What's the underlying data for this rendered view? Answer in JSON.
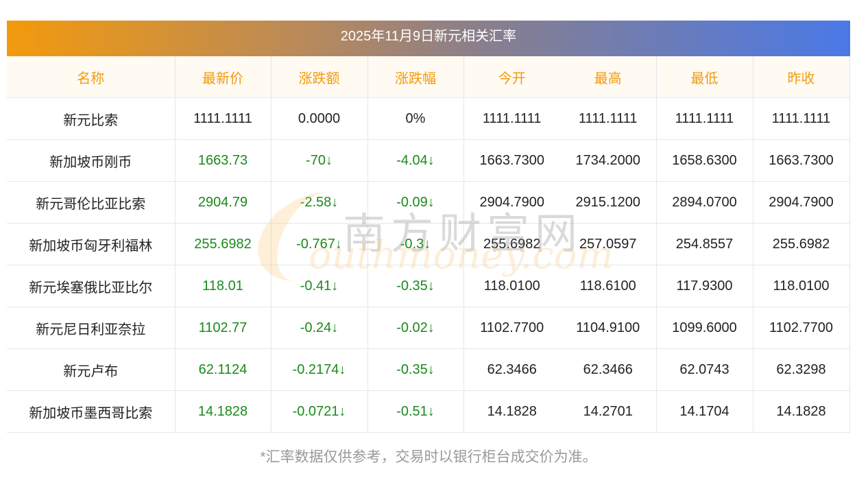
{
  "title": "2025年11月9日新元相关汇率",
  "columns": [
    "名称",
    "最新价",
    "涨跌额",
    "涨跌幅",
    "今开",
    "最高",
    "最低",
    "昨收"
  ],
  "rows": [
    [
      "新元比索",
      "1111.1111",
      "0.0000",
      "0%",
      "1111.1111",
      "1111.1111",
      "1111.1111",
      "1111.1111"
    ],
    [
      "新加坡币刚币",
      "1663.73",
      "-70↓",
      "-4.04↓",
      "1663.7300",
      "1734.2000",
      "1658.6300",
      "1663.7300"
    ],
    [
      "新元哥伦比亚比索",
      "2904.79",
      "-2.58↓",
      "-0.09↓",
      "2904.7900",
      "2915.1200",
      "2894.0700",
      "2904.7900"
    ],
    [
      "新加坡币匈牙利福林",
      "255.6982",
      "-0.767↓",
      "-0.3↓",
      "255.6982",
      "257.0597",
      "254.8557",
      "255.6982"
    ],
    [
      "新元埃塞俄比亚比尔",
      "118.01",
      "-0.41↓",
      "-0.35↓",
      "118.0100",
      "118.6100",
      "117.9300",
      "118.0100"
    ],
    [
      "新元尼日利亚奈拉",
      "1102.77",
      "-0.24↓",
      "-0.02↓",
      "1102.7700",
      "1104.9100",
      "1099.6000",
      "1102.7700"
    ],
    [
      "新元卢布",
      "62.1124",
      "-0.2174↓",
      "-0.35↓",
      "62.3466",
      "62.3466",
      "62.0743",
      "62.3298"
    ],
    [
      "新加坡币墨西哥比索",
      "14.1828",
      "-0.0721↓",
      "-0.51↓",
      "14.1828",
      "14.2701",
      "14.1704",
      "14.1828"
    ]
  ],
  "row_trend": [
    "flat",
    "down",
    "down",
    "down",
    "down",
    "down",
    "down",
    "down"
  ],
  "watermark": {
    "cn": "南方财富网",
    "en": "outhmoney.com"
  },
  "footer": "*汇率数据仅供参考，交易时以银行柜台成交价为准。",
  "colors": {
    "accent": "#f39a0c",
    "down": "#1a8a1a",
    "gradient_end": "#4a79e6"
  }
}
